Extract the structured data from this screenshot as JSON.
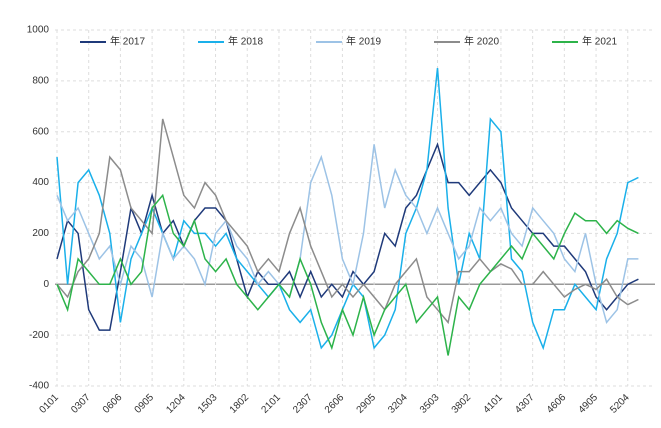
{
  "chart_data": {
    "type": "line",
    "categories": [
      "0101",
      null,
      null,
      "0307",
      null,
      null,
      "0606",
      null,
      null,
      "0905",
      null,
      null,
      "1204",
      null,
      null,
      "1503",
      null,
      null,
      "1802",
      null,
      null,
      "2101",
      null,
      null,
      "2307",
      null,
      null,
      "2606",
      null,
      null,
      "2905",
      null,
      null,
      "3204",
      null,
      null,
      "3503",
      null,
      null,
      "3802",
      null,
      null,
      "4101",
      null,
      null,
      "4307",
      null,
      null,
      "4606",
      null,
      null,
      "4905",
      null,
      null,
      "5204",
      null
    ],
    "series": [
      {
        "name": "年 2017",
        "color": "#1f3a7a",
        "values": [
          100,
          250,
          200,
          -100,
          -180,
          -180,
          50,
          300,
          200,
          350,
          200,
          250,
          150,
          250,
          300,
          300,
          250,
          100,
          -50,
          50,
          0,
          0,
          50,
          -50,
          50,
          -50,
          0,
          -50,
          50,
          0,
          50,
          200,
          150,
          300,
          350,
          450,
          550,
          400,
          400,
          350,
          400,
          450,
          400,
          300,
          250,
          200,
          200,
          150,
          150,
          100,
          50,
          -50,
          -100,
          -50,
          0,
          20
        ]
      },
      {
        "name": "年 2018",
        "color": "#1ab0ea",
        "values": [
          500,
          0,
          400,
          450,
          350,
          200,
          -150,
          100,
          200,
          300,
          200,
          100,
          250,
          200,
          200,
          150,
          200,
          100,
          50,
          0,
          -50,
          0,
          -100,
          -150,
          -100,
          -250,
          -200,
          -100,
          0,
          -50,
          -250,
          -200,
          -100,
          200,
          300,
          450,
          850,
          300,
          0,
          200,
          100,
          650,
          600,
          100,
          50,
          -150,
          -250,
          -100,
          -100,
          0,
          -50,
          -100,
          100,
          200,
          400,
          420
        ]
      },
      {
        "name": "年 2019",
        "color": "#9dc3e6",
        "values": [
          350,
          250,
          300,
          200,
          100,
          150,
          0,
          150,
          100,
          -50,
          200,
          100,
          150,
          100,
          0,
          200,
          250,
          150,
          100,
          0,
          50,
          0,
          -50,
          100,
          400,
          500,
          350,
          100,
          0,
          200,
          550,
          300,
          450,
          350,
          300,
          200,
          300,
          200,
          100,
          150,
          300,
          250,
          300,
          200,
          150,
          300,
          250,
          200,
          100,
          50,
          200,
          0,
          -150,
          -100,
          100,
          100
        ]
      },
      {
        "name": "年 2020",
        "color": "#8c8c8c",
        "values": [
          0,
          -50,
          50,
          100,
          200,
          500,
          450,
          300,
          250,
          200,
          650,
          500,
          350,
          300,
          400,
          350,
          250,
          200,
          150,
          50,
          100,
          50,
          200,
          300,
          150,
          50,
          -50,
          0,
          -50,
          0,
          -50,
          -100,
          0,
          50,
          100,
          -50,
          -100,
          -150,
          50,
          50,
          100,
          50,
          80,
          60,
          0,
          0,
          50,
          0,
          -50,
          -20,
          0,
          -20,
          20,
          -50,
          -80,
          -60
        ]
      },
      {
        "name": "年 2021",
        "color": "#2db34a",
        "values": [
          0,
          -100,
          100,
          50,
          0,
          0,
          100,
          0,
          50,
          300,
          350,
          200,
          150,
          250,
          100,
          50,
          100,
          0,
          -50,
          -100,
          -50,
          0,
          -50,
          100,
          0,
          -150,
          -250,
          -100,
          -200,
          -50,
          -200,
          -100,
          -50,
          0,
          -150,
          -100,
          -50,
          -280,
          -50,
          -100,
          0,
          50,
          100,
          150,
          100,
          200,
          150,
          100,
          200,
          280,
          250,
          250,
          200,
          250,
          220,
          200
        ]
      }
    ],
    "ylim": [
      -400,
      1000
    ],
    "yticks": [
      -400,
      -200,
      0,
      200,
      400,
      600,
      800,
      1000
    ],
    "grid": true
  }
}
